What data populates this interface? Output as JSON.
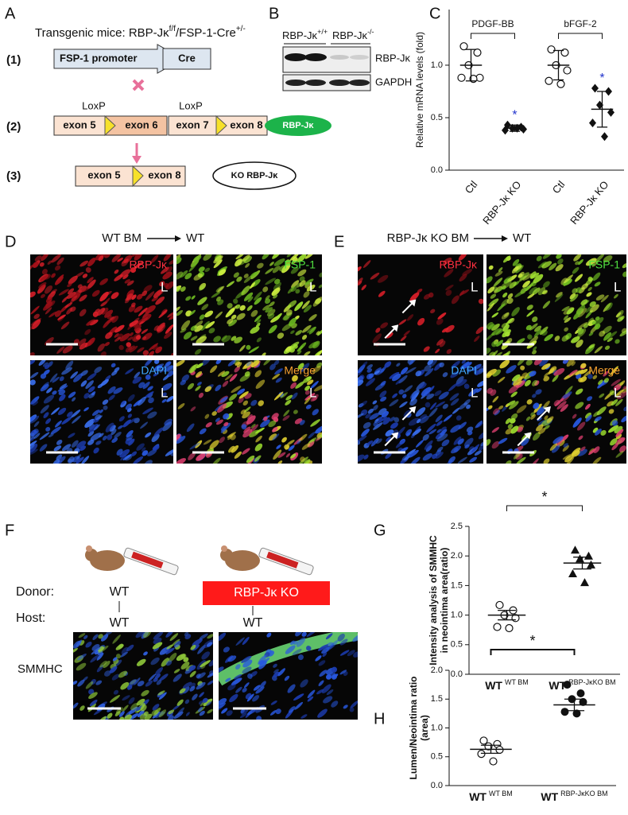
{
  "panel_labels": [
    "A",
    "B",
    "C",
    "D",
    "E",
    "F",
    "G",
    "H"
  ],
  "panel_a": {
    "title": {
      "prefix": "Transgenic mice: RBP-Jκ",
      "sup1": "f/f",
      "mid": "/FSP-1-Cre",
      "sup2": "+/-"
    },
    "steps": [
      "(1)",
      "(2)",
      "(3)"
    ],
    "promoter": "FSP-1 promoter",
    "cre": "Cre",
    "loxp": "LoxP",
    "exons": [
      "exon 5",
      "exon 6",
      "exon 7",
      "exon 8"
    ],
    "protein": "RBP-Jκ",
    "ko_protein": "KO RBP-Jκ"
  },
  "panel_b": {
    "genotypes": [
      {
        "base": "RBP-Jκ",
        "sup": "+/+"
      },
      {
        "base": "RBP-Jκ",
        "sup": "-/-"
      }
    ],
    "proteins": [
      "RBP-Jκ",
      "GAPDH"
    ]
  },
  "panel_d": {
    "donor": "WT BM",
    "host": "WT",
    "images": [
      "RBP-Jκ",
      "FSP-1",
      "DAPI",
      "Merge"
    ],
    "lumen": "L"
  },
  "panel_e": {
    "donor": "RBP-Jκ KO BM",
    "host": "WT",
    "images": [
      "RBP-Jκ",
      "FSP-1",
      "DAPI",
      "Merge"
    ],
    "lumen": "L"
  },
  "panel_f": {
    "donor_label": "Donor:",
    "host_label": "Host:",
    "donors": [
      "WT",
      "RBP-Jκ KO"
    ],
    "hosts": [
      "WT",
      "WT"
    ],
    "stain": "SMMHC"
  },
  "chart_data": [
    {
      "type": "dotplot",
      "ylabel": [
        "Relative mRNA levels (fold)"
      ],
      "categories": [
        "Ctl",
        "RBP-Jκ KO",
        "Ctl",
        "RBP-Jκ KO"
      ],
      "markers": [
        "open-circle",
        "filled-diamond",
        "open-circle",
        "filled-diamond"
      ],
      "values": [
        [
          1.18,
          1.12,
          1.0,
          0.88,
          0.88,
          0.87
        ],
        [
          0.43,
          0.41,
          0.4,
          0.39,
          0.38,
          0.4
        ],
        [
          1.15,
          1.12,
          1.0,
          0.95,
          0.85,
          0.82
        ],
        [
          0.78,
          0.75,
          0.62,
          0.55,
          0.45,
          0.32
        ]
      ],
      "means": [
        1.0,
        0.4,
        1.0,
        0.58
      ],
      "errors": [
        0.15,
        0.03,
        0.14,
        0.17
      ],
      "groups": [
        {
          "label": "PDGF-BB",
          "categories": [
            0,
            1
          ]
        },
        {
          "label": "bFGF-2",
          "categories": [
            2,
            3
          ]
        }
      ],
      "stars": [
        {
          "label": "*",
          "category": 1
        },
        {
          "label": "*",
          "category": 3
        }
      ],
      "star_color": "#2233cc",
      "ylim": [
        0,
        1.53
      ],
      "yticks": [
        {
          "value": 0,
          "label": "0.0"
        },
        {
          "value": 0.5,
          "label": "0.5"
        },
        {
          "value": 1,
          "label": "1.0"
        }
      ]
    },
    {
      "type": "dotplot",
      "ylabel": [
        "Intensity analysis of SMMHC",
        "in neointima area(ratio)"
      ],
      "categories": [
        "WT",
        "WT"
      ],
      "category_subs": [
        "WT BM",
        "RBP-JκKO BM"
      ],
      "markers": [
        "open-circle",
        "filled-triangle"
      ],
      "values": [
        [
          1.17,
          1.08,
          1.0,
          0.95,
          0.8,
          0.78
        ],
        [
          2.1,
          2.0,
          1.95,
          1.85,
          1.7,
          1.55
        ]
      ],
      "means": [
        1.0,
        1.88
      ],
      "errors": [
        0.08,
        0.1
      ],
      "bracket": {
        "label": "*",
        "categories": [
          0,
          1
        ]
      },
      "ylim": [
        0,
        2.5
      ],
      "yticks": [
        {
          "value": 0,
          "label": "0.0"
        },
        {
          "value": 0.5,
          "label": "0.5"
        },
        {
          "value": 1,
          "label": "1.0"
        },
        {
          "value": 1.5,
          "label": "1.5"
        },
        {
          "value": 2,
          "label": "2.0"
        },
        {
          "value": 2.5,
          "label": "2.5"
        }
      ]
    },
    {
      "type": "dotplot",
      "ylabel": [
        "Lumen/Neointima ratio",
        "(area)"
      ],
      "categories": [
        "WT",
        "WT"
      ],
      "category_subs": [
        "WT BM",
        "RBP-JκKO BM"
      ],
      "markers": [
        "open-circle",
        "filled-circle"
      ],
      "values": [
        [
          0.78,
          0.72,
          0.68,
          0.62,
          0.55,
          0.42
        ],
        [
          1.75,
          1.6,
          1.5,
          1.45,
          1.28,
          1.25
        ]
      ],
      "means": [
        0.63,
        1.4
      ],
      "errors": [
        0.07,
        0.1
      ],
      "bracket": {
        "label": "*",
        "categories": [
          0,
          1
        ]
      },
      "ylim": [
        0,
        2
      ],
      "yticks": [
        {
          "value": 0,
          "label": "0.0"
        },
        {
          "value": 0.5,
          "label": "0.5"
        },
        {
          "value": 1,
          "label": "1.0"
        },
        {
          "value": 1.5,
          "label": "1.5"
        },
        {
          "value": 2,
          "label": "2.0"
        }
      ]
    }
  ]
}
